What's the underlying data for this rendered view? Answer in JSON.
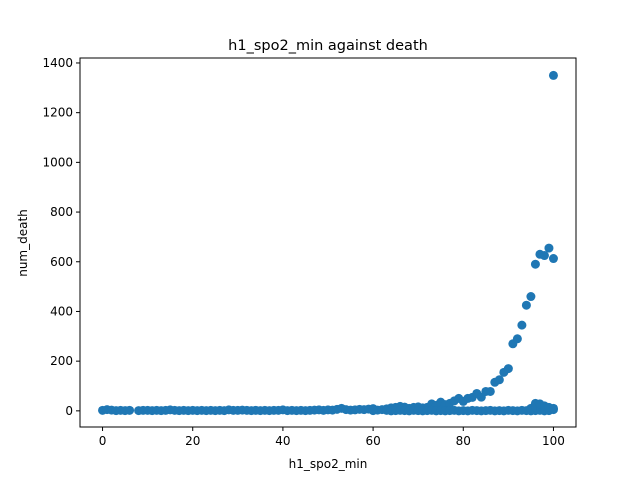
{
  "chart_data": {
    "type": "scatter",
    "title": "h1_spo2_min against death",
    "xlabel": "h1_spo2_min",
    "ylabel": "num_death",
    "xlim": [
      -5,
      105
    ],
    "ylim": [
      -65,
      1420
    ],
    "xticks": [
      0,
      20,
      40,
      60,
      80,
      100
    ],
    "yticks": [
      0,
      200,
      400,
      600,
      800,
      1000,
      1200,
      1400
    ],
    "grid": false,
    "marker_color": "#1f77b4",
    "series": [
      {
        "x": [
          0,
          1,
          2,
          3,
          4,
          5,
          6,
          8,
          9,
          10,
          11,
          12,
          13,
          14,
          15,
          16,
          17,
          18,
          19,
          20,
          21,
          22,
          23,
          24,
          25,
          26,
          27,
          28,
          29,
          30,
          31,
          32,
          33,
          34,
          35,
          36,
          37,
          38,
          39,
          40,
          41,
          42,
          43,
          44,
          45,
          46,
          47,
          48,
          49,
          50,
          51,
          52,
          53,
          54,
          55,
          56,
          57,
          58,
          59,
          60,
          61,
          62,
          63,
          64,
          65,
          66,
          67,
          68,
          69,
          70,
          71,
          72,
          73,
          74,
          75,
          76,
          77,
          78,
          79,
          80,
          81,
          82,
          83,
          84,
          85,
          86,
          87,
          88,
          89,
          90,
          91,
          92,
          93,
          94,
          95,
          96,
          97,
          98,
          99,
          100,
          60,
          63,
          64,
          65,
          66,
          67,
          68,
          69,
          70,
          71,
          72,
          73,
          74,
          75,
          76,
          77,
          78,
          79,
          80,
          81,
          82,
          83,
          84,
          85,
          86,
          87,
          88,
          89,
          90,
          91,
          92,
          93,
          94,
          95,
          96,
          97,
          98,
          99,
          100,
          95,
          96,
          97,
          98,
          99,
          100,
          96,
          97,
          98,
          99,
          100
        ],
        "y": [
          2,
          5,
          3,
          1,
          2,
          1,
          2,
          1,
          2,
          2,
          1,
          2,
          1,
          2,
          4,
          2,
          1,
          2,
          1,
          2,
          1,
          2,
          1,
          2,
          1,
          2,
          1,
          4,
          2,
          2,
          3,
          2,
          1,
          2,
          1,
          2,
          1,
          2,
          2,
          4,
          1,
          2,
          1,
          2,
          1,
          2,
          3,
          4,
          2,
          4,
          3,
          6,
          10,
          5,
          3,
          4,
          6,
          5,
          7,
          9,
          3,
          5,
          8,
          12,
          14,
          18,
          15,
          10,
          14,
          16,
          12,
          14,
          28,
          22,
          35,
          25,
          30,
          40,
          50,
          38,
          50,
          54,
          70,
          55,
          78,
          78,
          115,
          125,
          155,
          170,
          270,
          290,
          345,
          425,
          460,
          590,
          630,
          625,
          655,
          613,
          1,
          2,
          0,
          1,
          2,
          1,
          0,
          2,
          1,
          0,
          1,
          2,
          0,
          1,
          0,
          1,
          2,
          0,
          1,
          0,
          2,
          1,
          0,
          1,
          2,
          0,
          1,
          0,
          2,
          1,
          0,
          2,
          1,
          0,
          1,
          2,
          0,
          1,
          1350,
          10,
          15,
          18,
          12,
          8,
          5,
          30,
          28,
          20,
          14,
          10
        ]
      }
    ]
  }
}
